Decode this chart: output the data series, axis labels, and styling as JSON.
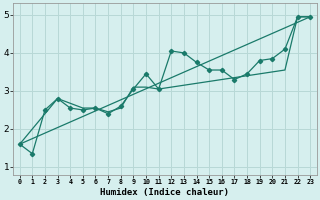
{
  "title": "",
  "xlabel": "Humidex (Indice chaleur)",
  "ylabel": "",
  "bg_color": "#d6efee",
  "grid_color": "#b8d8d6",
  "line_color": "#1a7a6a",
  "marker_color": "#1a7a6a",
  "xlim": [
    -0.5,
    23.5
  ],
  "ylim": [
    0.8,
    5.3
  ],
  "xticks": [
    0,
    1,
    2,
    3,
    4,
    5,
    6,
    7,
    8,
    9,
    10,
    11,
    12,
    13,
    14,
    15,
    16,
    17,
    18,
    19,
    20,
    21,
    22,
    23
  ],
  "yticks": [
    1,
    2,
    3,
    4,
    5
  ],
  "series1": [
    [
      0,
      1.6
    ],
    [
      1,
      1.35
    ],
    [
      2,
      2.5
    ],
    [
      3,
      2.8
    ],
    [
      4,
      2.55
    ],
    [
      5,
      2.5
    ],
    [
      6,
      2.55
    ],
    [
      7,
      2.4
    ],
    [
      8,
      2.6
    ],
    [
      9,
      3.05
    ],
    [
      10,
      3.45
    ],
    [
      11,
      3.05
    ],
    [
      12,
      4.05
    ],
    [
      13,
      4.0
    ],
    [
      14,
      3.75
    ],
    [
      15,
      3.55
    ],
    [
      16,
      3.55
    ],
    [
      17,
      3.3
    ],
    [
      18,
      3.45
    ],
    [
      19,
      3.8
    ],
    [
      20,
      3.85
    ],
    [
      21,
      4.1
    ],
    [
      22,
      4.95
    ],
    [
      23,
      4.95
    ]
  ],
  "series2": [
    [
      0,
      1.6
    ],
    [
      3,
      2.8
    ],
    [
      5,
      2.55
    ],
    [
      6,
      2.55
    ],
    [
      7,
      2.45
    ],
    [
      8,
      2.55
    ],
    [
      9,
      3.1
    ],
    [
      10,
      3.1
    ],
    [
      11,
      3.05
    ],
    [
      12,
      3.1
    ],
    [
      13,
      3.15
    ],
    [
      14,
      3.2
    ],
    [
      15,
      3.25
    ],
    [
      16,
      3.3
    ],
    [
      17,
      3.35
    ],
    [
      18,
      3.4
    ],
    [
      19,
      3.45
    ],
    [
      20,
      3.5
    ],
    [
      21,
      3.55
    ],
    [
      22,
      4.95
    ],
    [
      23,
      4.95
    ]
  ],
  "trend_line": [
    [
      0,
      1.6
    ],
    [
      23,
      4.95
    ]
  ],
  "figsize": [
    3.2,
    2.0
  ],
  "dpi": 100
}
